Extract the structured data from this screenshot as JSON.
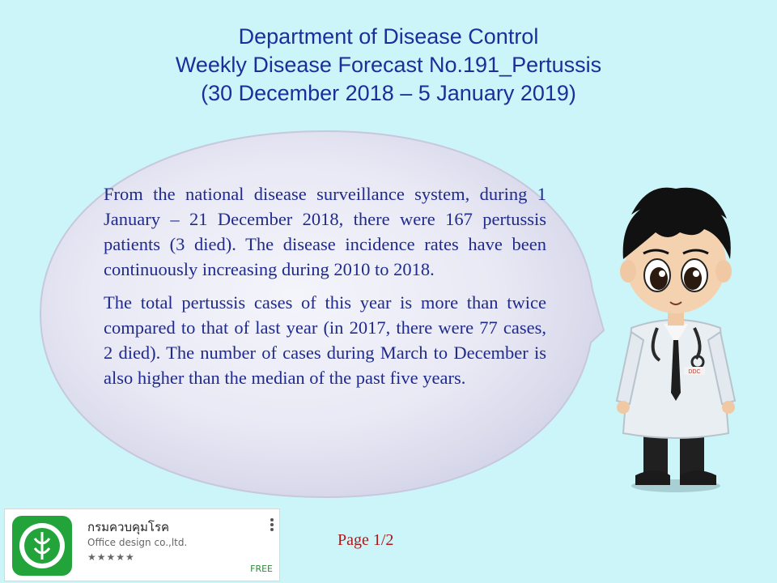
{
  "title": {
    "line1": "Department of Disease Control",
    "line2": "Weekly Disease Forecast No.191_Pertussis",
    "line3": "(30 December 2018 – 5 January 2019)"
  },
  "body": {
    "paragraph1": "From the national disease surveillance system, during 1 January – 21 December 2018, there were 167 pertussis patients (3 died). The disease incidence rates have been continuously increasing during 2010 to 2018.",
    "paragraph2": "The total pertussis cases of this year is more than twice compared to that of last year (in 2017, there were 77 cases, 2 died). The number of cases during March to December is also higher than the median of the past five years."
  },
  "doctor": {
    "badge": "DDC"
  },
  "footer": {
    "page": "Page 1/2"
  },
  "app_card": {
    "name": "กรมควบคุมโรค",
    "developer": "Office design co.,ltd.",
    "stars": "★★★★★",
    "price": "FREE",
    "icon_name": "ddc-logo-icon",
    "icon_color": "#23a43a"
  },
  "colors": {
    "background": "#ccf5f9",
    "title": "#1c2e9a",
    "body_text": "#1f2a8c",
    "page_number": "#b01818"
  }
}
